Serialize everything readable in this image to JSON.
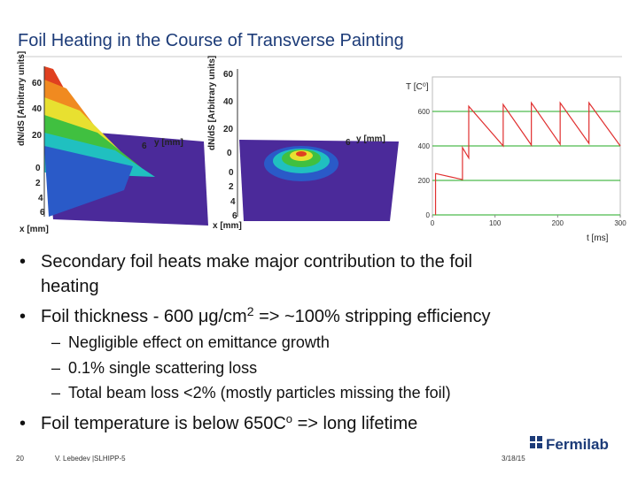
{
  "header": {
    "title": "Foil Heating in the Course of  Transverse Painting"
  },
  "plot_left": {
    "z_label": "dN/dS [Arbitrary units]",
    "z_ticks": [
      60,
      40,
      20
    ],
    "y_label": "y [mm]",
    "y_ticks": [
      6
    ],
    "x_label": "x [mm]",
    "x_ticks": [
      0,
      2,
      4,
      6
    ]
  },
  "plot_middle": {
    "z_label": "dN/dS [Arbitrary units]",
    "z_ticks": [
      60,
      40,
      20,
      0
    ],
    "y_label": "y [mm]",
    "y_ticks": [
      6
    ],
    "x_label": "x [mm]",
    "x_ticks": [
      0,
      2,
      4,
      6
    ]
  },
  "chart_data": {
    "type": "line",
    "y_label": "T [C⁰]",
    "x_label": "t [ms]",
    "x": [
      5,
      5,
      48,
      48,
      58,
      58,
      113,
      113,
      158,
      158,
      204,
      204,
      250,
      250,
      300
    ],
    "series": [
      {
        "color": "#e03030",
        "values": [
          0,
          240,
          205,
          390,
          330,
          630,
          400,
          640,
          405,
          650,
          410,
          650,
          415,
          650,
          400
        ]
      }
    ],
    "xlim": [
      0,
      300
    ],
    "xticks": [
      0,
      100,
      200,
      300
    ],
    "ylim": [
      0,
      800
    ],
    "yticks": [
      0,
      200,
      400,
      600
    ],
    "grid": true,
    "grid_color": "#22aa22"
  },
  "bullets": [
    {
      "lines": [
        "Secondary foil heats make major contribution to the foil",
        "heating"
      ]
    },
    {
      "text": "Foil thickness - 600 μg/cm",
      "sup": "2",
      "tail": "  => ~100% stripping efficiency",
      "sub": [
        "Negligible effect on emittance growth",
        "0.1% single scattering loss",
        "Total beam loss <2% (mostly particles missing the foil)"
      ]
    },
    {
      "text": "Foil temperature is below 650C",
      "sup": "o",
      "tail": " => long lifetime"
    }
  ],
  "footer": {
    "page": "20",
    "author": "V. Lebedev |SLHIPP-5",
    "date": "3/18/15",
    "logo": "Fermilab"
  }
}
